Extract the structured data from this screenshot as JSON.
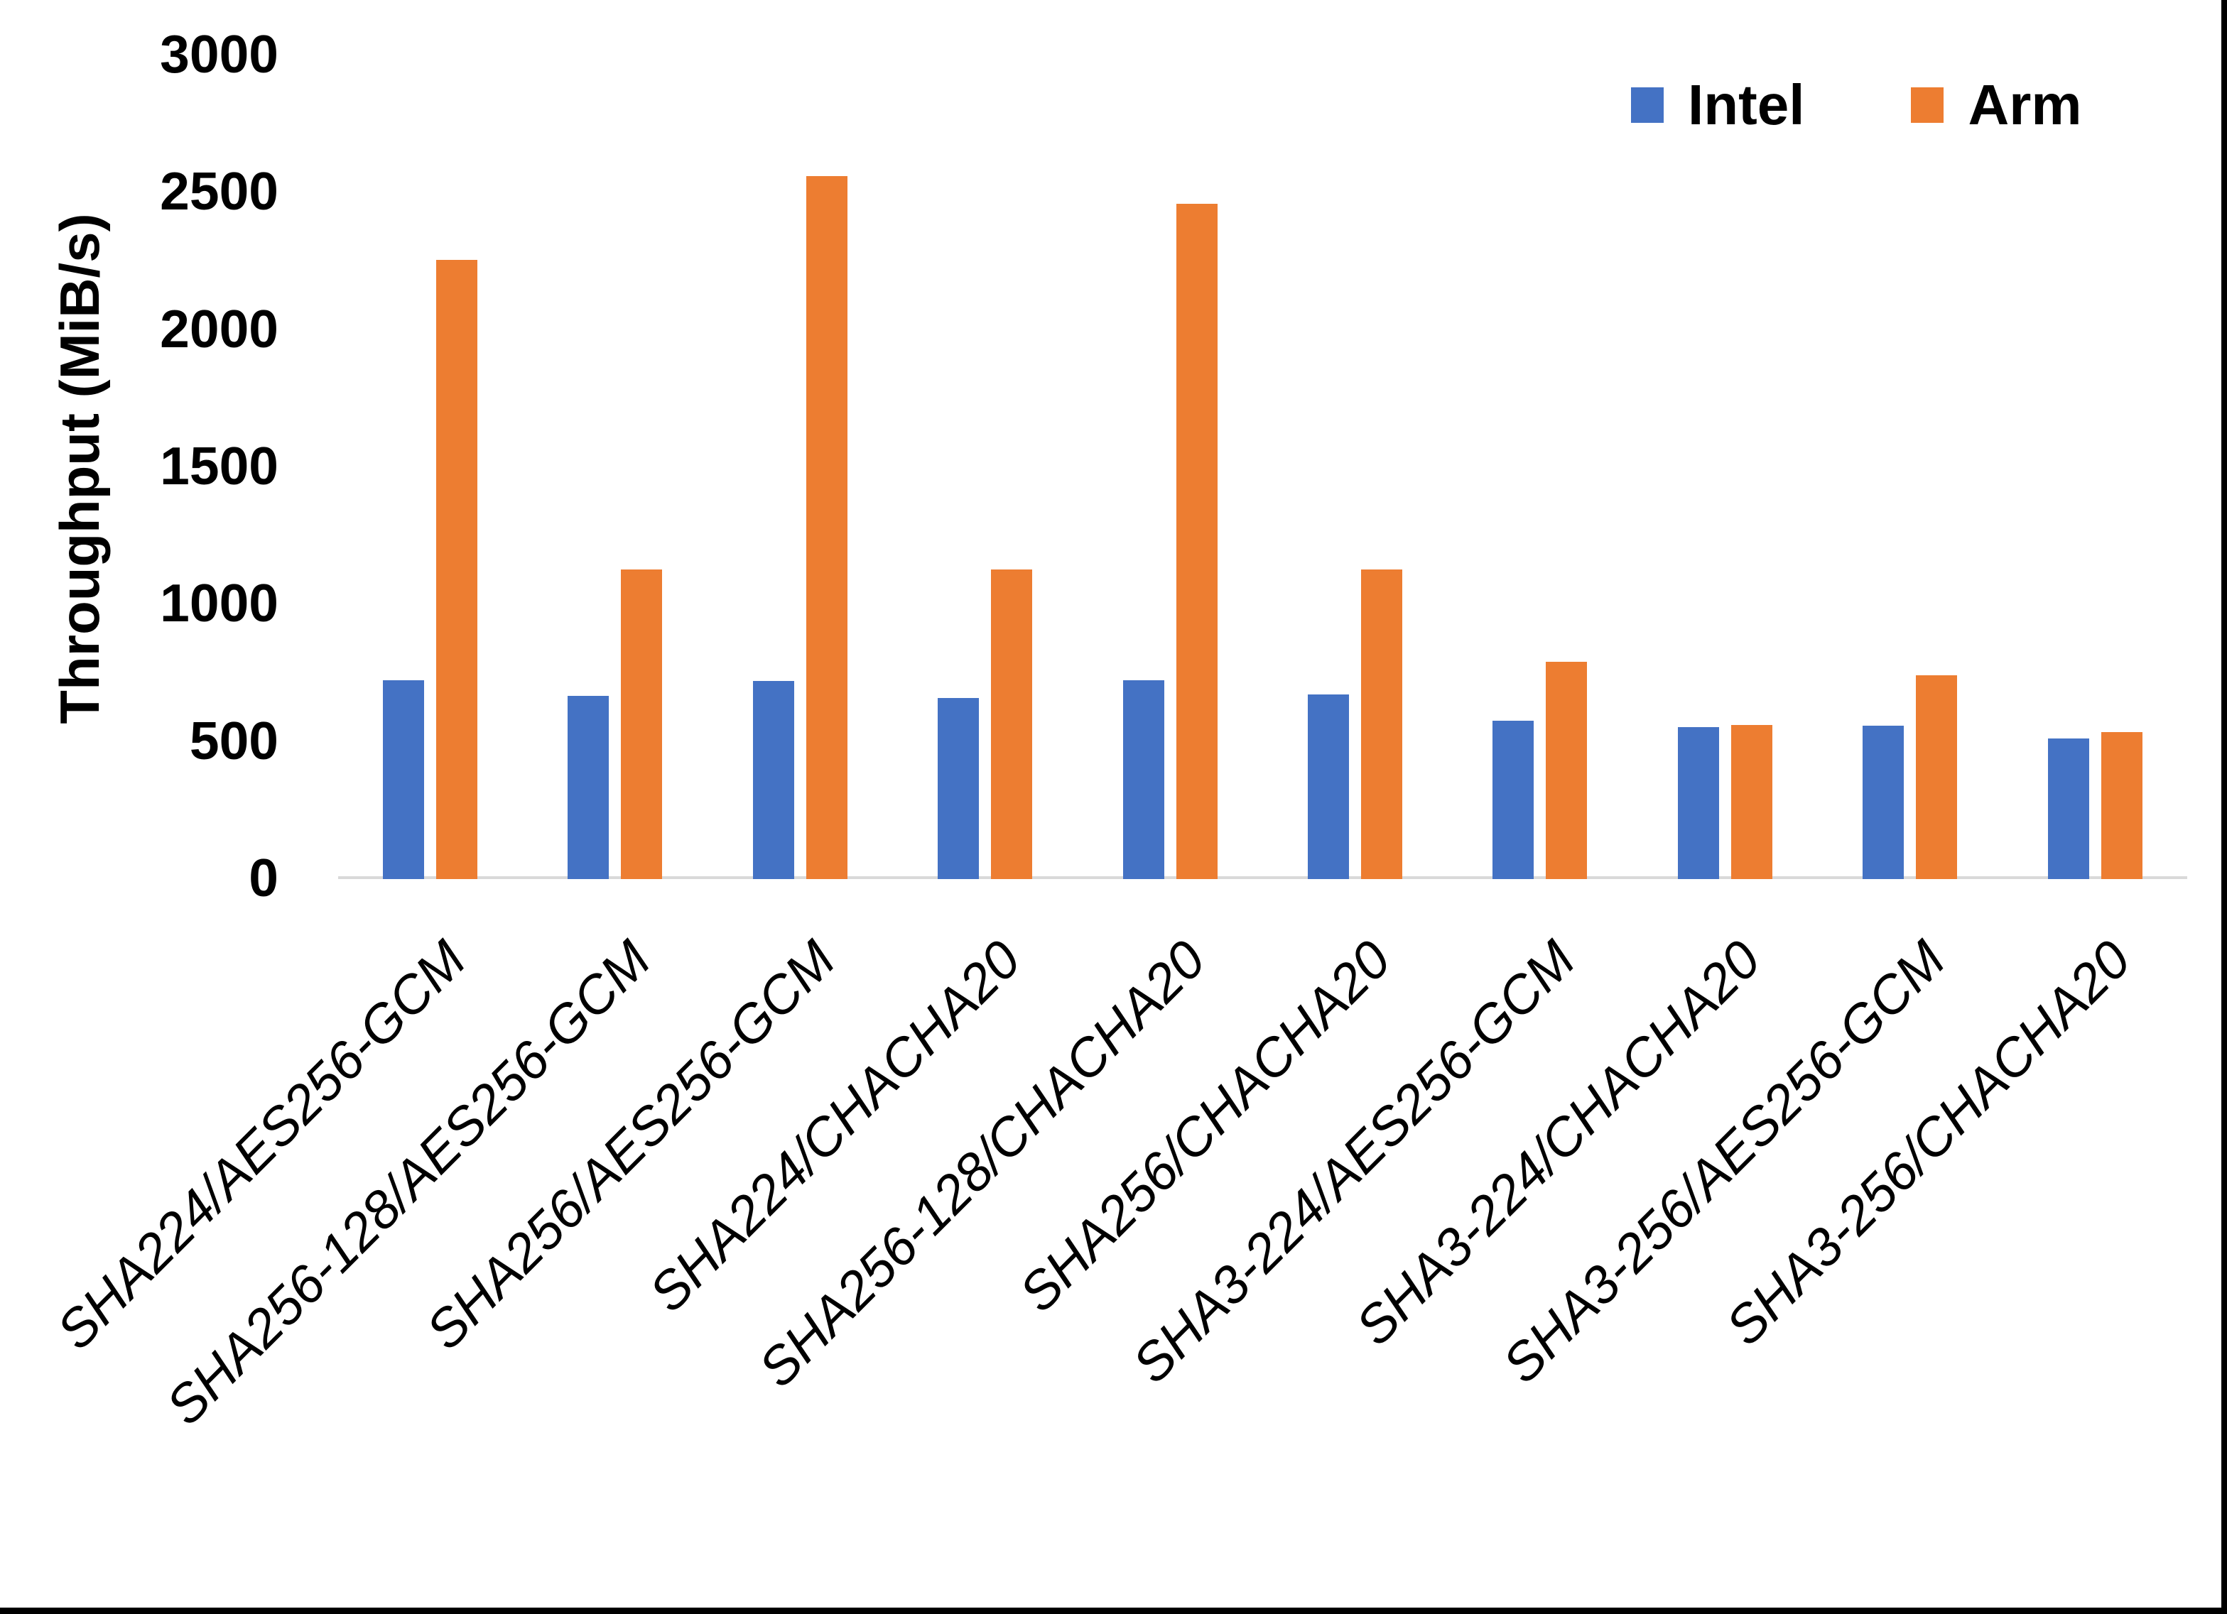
{
  "figure": {
    "background": "#FFFFFF",
    "frame_border_color": "#000000"
  },
  "chart_data": {
    "type": "bar",
    "title": "",
    "xlabel": "",
    "ylabel": "Throughput (MiB/s)",
    "ylim": [
      0,
      3000
    ],
    "yticks": [
      0,
      500,
      1000,
      1500,
      2000,
      2500,
      3000
    ],
    "grid": false,
    "legend_position": "top-right",
    "axis_line_color": "#D9D9D9",
    "text_color": "#000000",
    "categories": [
      "SHA224/AES256-GCM",
      "SHA256-128/AES256-GCM",
      "SHA256/AES256-GCM",
      "SHA224/CHACHA20",
      "SHA256-128/CHACHA20",
      "SHA256/CHACHA20",
      "SHA3-224/AES256-GCM",
      "SHA3-224/CHACHA20",
      "SHA3-256/AES256-GCM",
      "SHA3-256/CHACHA20"
    ],
    "series": [
      {
        "name": "Intel",
        "color": "#4472C4",
        "values": [
          720,
          662,
          717,
          655,
          720,
          668,
          572,
          548,
          553,
          507
        ]
      },
      {
        "name": "Arm",
        "color": "#ED7D31",
        "values": [
          2250,
          1122,
          2555,
          1122,
          2455,
          1122,
          787,
          556,
          737,
          531
        ]
      }
    ]
  }
}
